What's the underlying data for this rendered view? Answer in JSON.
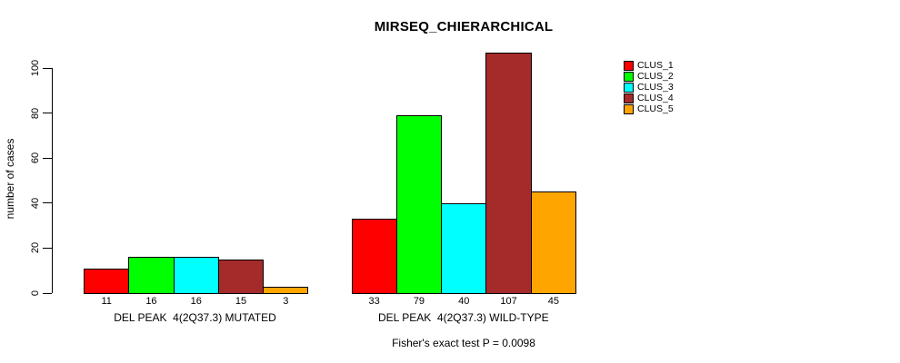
{
  "title": "MIRSEQ_CHIERARCHICAL",
  "chart_data": {
    "type": "bar",
    "title": "MIRSEQ_CHIERARCHICAL",
    "xlabel": "",
    "ylabel": "number of cases",
    "ylim": [
      0,
      100
    ],
    "yticks": [
      0,
      20,
      40,
      60,
      80,
      100
    ],
    "grid": false,
    "legend_position": "right",
    "bar_value_labels_shown": true,
    "categories": [
      "DEL PEAK  4(2Q37.3) MUTATED",
      "DEL PEAK  4(2Q37.3) WILD-TYPE"
    ],
    "series": [
      {
        "name": "CLUS_1",
        "color": "#ff0000",
        "values": [
          11,
          33
        ]
      },
      {
        "name": "CLUS_2",
        "color": "#00ff00",
        "values": [
          16,
          79
        ]
      },
      {
        "name": "CLUS_3",
        "color": "#00ffff",
        "values": [
          16,
          40
        ]
      },
      {
        "name": "CLUS_4",
        "color": "#a52a2a",
        "values": [
          15,
          107
        ]
      },
      {
        "name": "CLUS_5",
        "color": "#ffa500",
        "values": [
          3,
          45
        ]
      }
    ],
    "annotation": "Fisher's exact test P = 0.0098"
  }
}
